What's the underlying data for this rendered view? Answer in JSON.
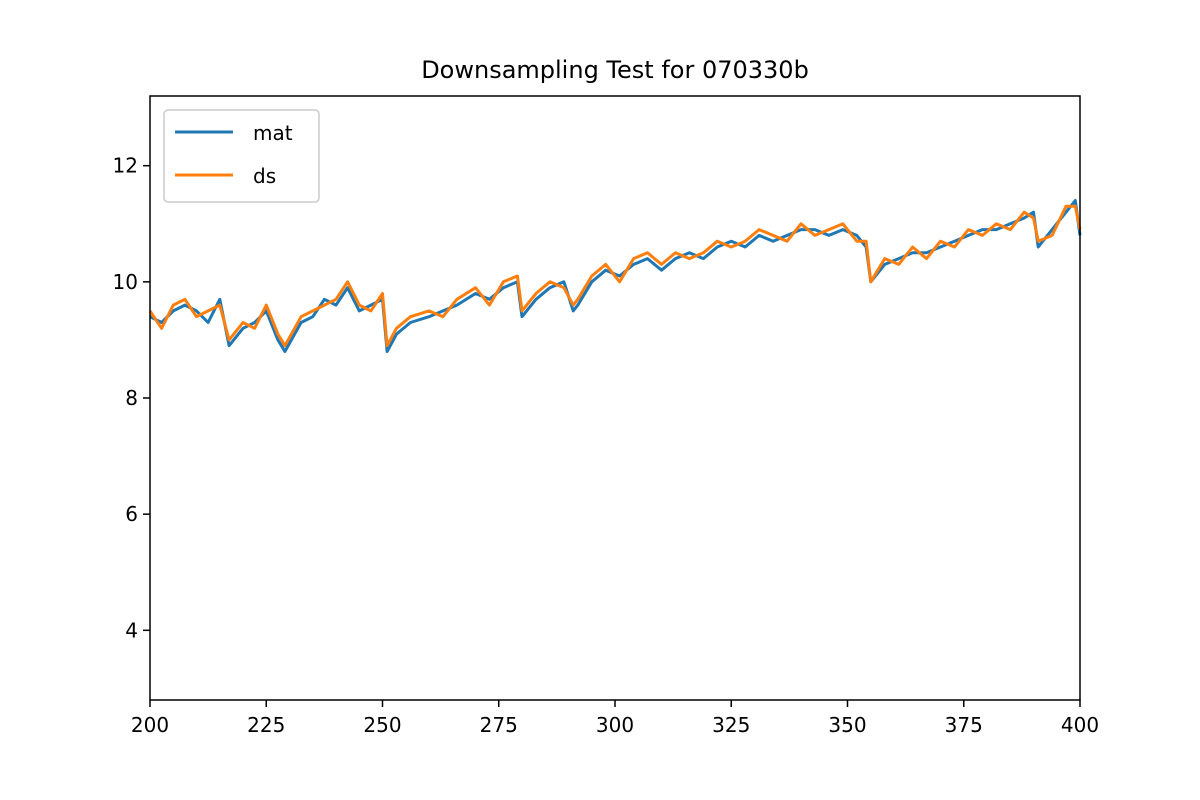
{
  "chart_data": {
    "type": "line",
    "title": "Downsampling Test for 070330b",
    "xlabel": "",
    "ylabel": "",
    "xlim": [
      200,
      400
    ],
    "ylim": [
      2.8,
      13.2
    ],
    "xticks": [
      200,
      225,
      250,
      275,
      300,
      325,
      350,
      375,
      400
    ],
    "yticks": [
      4,
      6,
      8,
      10,
      12
    ],
    "grid": false,
    "legend_position": "upper-left",
    "series": [
      {
        "name": "mat",
        "color": "#1f77b4",
        "x": [
          200,
          202.5,
          205,
          207.5,
          210,
          212.5,
          215,
          217,
          220,
          222.5,
          225,
          227.5,
          229,
          232.5,
          235,
          237.5,
          240,
          242.5,
          245,
          247.5,
          250,
          251,
          253,
          256,
          260,
          263,
          266,
          270,
          273,
          276,
          279,
          280,
          283,
          286,
          289,
          291,
          292,
          295,
          298,
          301,
          304,
          307,
          310,
          313,
          316,
          319,
          322,
          325,
          328,
          331,
          334,
          337,
          340,
          343,
          346,
          349,
          352,
          354,
          355,
          358,
          361,
          364,
          367,
          370,
          373,
          376,
          379,
          382,
          385,
          388,
          390,
          391,
          394,
          397,
          399,
          400
        ],
        "y": [
          9.4,
          9.3,
          9.5,
          9.6,
          9.5,
          9.3,
          9.7,
          8.9,
          9.2,
          9.3,
          9.5,
          9.0,
          8.8,
          9.3,
          9.4,
          9.7,
          9.6,
          9.9,
          9.5,
          9.6,
          9.7,
          8.8,
          9.1,
          9.3,
          9.4,
          9.5,
          9.6,
          9.8,
          9.7,
          9.9,
          10.0,
          9.4,
          9.7,
          9.9,
          10.0,
          9.5,
          9.6,
          10.0,
          10.2,
          10.1,
          10.3,
          10.4,
          10.2,
          10.4,
          10.5,
          10.4,
          10.6,
          10.7,
          10.6,
          10.8,
          10.7,
          10.8,
          10.9,
          10.9,
          10.8,
          10.9,
          10.8,
          10.6,
          10.0,
          10.3,
          10.4,
          10.5,
          10.5,
          10.6,
          10.7,
          10.8,
          10.9,
          10.9,
          11.0,
          11.1,
          11.2,
          10.6,
          10.9,
          11.2,
          11.4,
          10.8
        ]
      },
      {
        "name": "ds",
        "color": "#ff7f0e",
        "x": [
          200,
          202.5,
          205,
          207.5,
          210,
          212.5,
          215,
          217,
          220,
          222.5,
          225,
          227.5,
          229,
          232.5,
          235,
          237.5,
          240,
          242.5,
          245,
          247.5,
          250,
          251,
          253,
          256,
          260,
          263,
          266,
          270,
          273,
          276,
          279,
          280,
          283,
          286,
          289,
          291,
          292,
          295,
          298,
          301,
          304,
          307,
          310,
          313,
          316,
          319,
          322,
          325,
          328,
          331,
          334,
          337,
          340,
          343,
          346,
          349,
          352,
          354,
          355,
          358,
          361,
          364,
          367,
          370,
          373,
          376,
          379,
          382,
          385,
          388,
          390,
          391,
          394,
          397,
          399,
          400
        ],
        "y": [
          9.5,
          9.2,
          9.6,
          9.7,
          9.4,
          9.5,
          9.6,
          9.0,
          9.3,
          9.2,
          9.6,
          9.1,
          8.9,
          9.4,
          9.5,
          9.6,
          9.7,
          10.0,
          9.6,
          9.5,
          9.8,
          8.9,
          9.2,
          9.4,
          9.5,
          9.4,
          9.7,
          9.9,
          9.6,
          10.0,
          10.1,
          9.5,
          9.8,
          10.0,
          9.9,
          9.6,
          9.7,
          10.1,
          10.3,
          10.0,
          10.4,
          10.5,
          10.3,
          10.5,
          10.4,
          10.5,
          10.7,
          10.6,
          10.7,
          10.9,
          10.8,
          10.7,
          11.0,
          10.8,
          10.9,
          11.0,
          10.7,
          10.7,
          10.0,
          10.4,
          10.3,
          10.6,
          10.4,
          10.7,
          10.6,
          10.9,
          10.8,
          11.0,
          10.9,
          11.2,
          11.1,
          10.7,
          10.8,
          11.3,
          11.3,
          10.9
        ]
      }
    ]
  }
}
